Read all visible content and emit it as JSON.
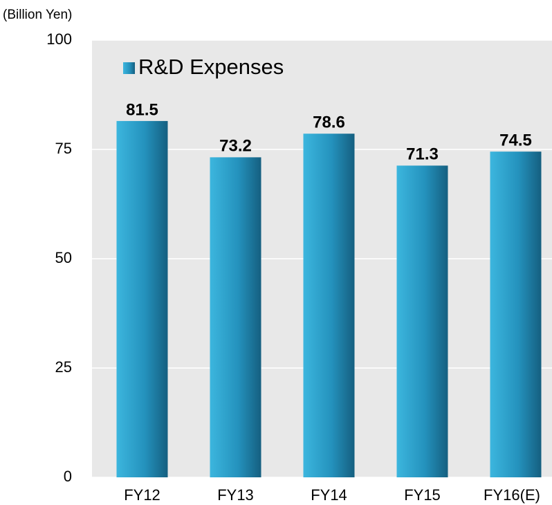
{
  "chart_data": {
    "type": "bar",
    "y_axis_label": "(Billion Yen)",
    "categories": [
      "FY12",
      "FY13",
      "FY14",
      "FY15",
      "FY16(E)"
    ],
    "series": [
      {
        "name": "R&D Expenses",
        "color": "#2a9cc8",
        "values": [
          81.5,
          73.2,
          78.6,
          71.3,
          74.5
        ]
      }
    ],
    "ylim": [
      0,
      100
    ],
    "yticks": [
      0,
      25,
      50,
      75,
      100
    ],
    "grid": true,
    "legend": "top-left"
  }
}
